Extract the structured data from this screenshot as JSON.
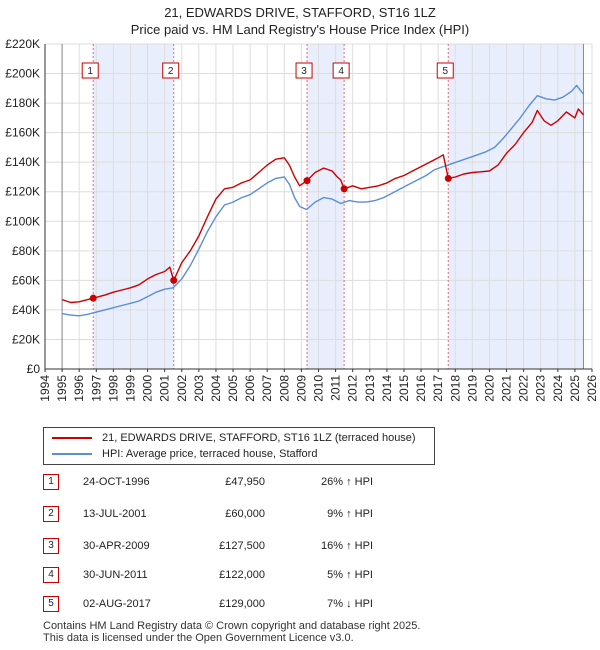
{
  "chart_data": {
    "type": "line",
    "title": "21, EDWARDS DRIVE, STAFFORD, ST16 1LZ",
    "subtitle": "Price paid vs. HM Land Registry's House Price Index (HPI)",
    "xlim": [
      1994,
      2026
    ],
    "ylim": [
      0,
      220000
    ],
    "x_ticks": [
      "1994",
      "1995",
      "1996",
      "1997",
      "1998",
      "1999",
      "2000",
      "2001",
      "2002",
      "2003",
      "2004",
      "2005",
      "2006",
      "2007",
      "2008",
      "2009",
      "2010",
      "2011",
      "2012",
      "2013",
      "2014",
      "2015",
      "2016",
      "2017",
      "2018",
      "2019",
      "2020",
      "2021",
      "2022",
      "2023",
      "2024",
      "2025",
      "2026"
    ],
    "y_ticks": [
      {
        "value": 0,
        "label": "£0"
      },
      {
        "value": 20000,
        "label": "£20K"
      },
      {
        "value": 40000,
        "label": "£40K"
      },
      {
        "value": 60000,
        "label": "£60K"
      },
      {
        "value": 80000,
        "label": "£80K"
      },
      {
        "value": 100000,
        "label": "£100K"
      },
      {
        "value": 120000,
        "label": "£120K"
      },
      {
        "value": 140000,
        "label": "£140K"
      },
      {
        "value": 160000,
        "label": "£160K"
      },
      {
        "value": 180000,
        "label": "£180K"
      },
      {
        "value": 200000,
        "label": "£200K"
      },
      {
        "value": 220000,
        "label": "£220K"
      }
    ],
    "data_start": 1995.0,
    "data_end": 2025.5,
    "series": [
      {
        "name": "21, EDWARDS DRIVE, STAFFORD, ST16 1LZ (terraced house)",
        "color": "#cc0000",
        "points": [
          [
            1995.0,
            47000
          ],
          [
            1995.5,
            45000
          ],
          [
            1996.0,
            45500
          ],
          [
            1996.5,
            47000
          ],
          [
            1996.82,
            47950
          ],
          [
            1997.5,
            50000
          ],
          [
            1998.0,
            52000
          ],
          [
            1998.5,
            53500
          ],
          [
            1999.0,
            55000
          ],
          [
            1999.5,
            57000
          ],
          [
            2000.0,
            61000
          ],
          [
            2000.5,
            64000
          ],
          [
            2001.0,
            66000
          ],
          [
            2001.3,
            69000
          ],
          [
            2001.53,
            60000
          ],
          [
            2002.0,
            72000
          ],
          [
            2002.5,
            80000
          ],
          [
            2003.0,
            90000
          ],
          [
            2003.5,
            103000
          ],
          [
            2004.0,
            115000
          ],
          [
            2004.5,
            122000
          ],
          [
            2005.0,
            123000
          ],
          [
            2005.5,
            126000
          ],
          [
            2006.0,
            128000
          ],
          [
            2006.5,
            133000
          ],
          [
            2007.0,
            138000
          ],
          [
            2007.5,
            142000
          ],
          [
            2008.0,
            143000
          ],
          [
            2008.3,
            138000
          ],
          [
            2008.6,
            130000
          ],
          [
            2008.9,
            124000
          ],
          [
            2009.33,
            127500
          ],
          [
            2009.8,
            133000
          ],
          [
            2010.3,
            136000
          ],
          [
            2010.8,
            134000
          ],
          [
            2011.1,
            130000
          ],
          [
            2011.3,
            128000
          ],
          [
            2011.5,
            122000
          ],
          [
            2012.0,
            124000
          ],
          [
            2012.5,
            122000
          ],
          [
            2013.0,
            123000
          ],
          [
            2013.5,
            124000
          ],
          [
            2014.0,
            126000
          ],
          [
            2014.5,
            129000
          ],
          [
            2015.0,
            131000
          ],
          [
            2015.5,
            134000
          ],
          [
            2016.0,
            137000
          ],
          [
            2016.5,
            140000
          ],
          [
            2017.0,
            143000
          ],
          [
            2017.3,
            145000
          ],
          [
            2017.5,
            134000
          ],
          [
            2017.59,
            129000
          ],
          [
            2018.0,
            130000
          ],
          [
            2018.5,
            132000
          ],
          [
            2019.0,
            133000
          ],
          [
            2019.5,
            133500
          ],
          [
            2020.0,
            134000
          ],
          [
            2020.5,
            138000
          ],
          [
            2021.0,
            146000
          ],
          [
            2021.5,
            152000
          ],
          [
            2022.0,
            160000
          ],
          [
            2022.5,
            167000
          ],
          [
            2022.8,
            175000
          ],
          [
            2023.2,
            168000
          ],
          [
            2023.6,
            165000
          ],
          [
            2024.0,
            168000
          ],
          [
            2024.5,
            174000
          ],
          [
            2025.0,
            170000
          ],
          [
            2025.2,
            176000
          ],
          [
            2025.5,
            172000
          ]
        ]
      },
      {
        "name": "HPI: Average price, terraced house, Stafford",
        "color": "#5b8ed6",
        "points": [
          [
            1995.0,
            37500
          ],
          [
            1995.5,
            36500
          ],
          [
            1996.0,
            36000
          ],
          [
            1996.5,
            37000
          ],
          [
            1997.0,
            38500
          ],
          [
            1997.5,
            40000
          ],
          [
            1998.0,
            41500
          ],
          [
            1998.5,
            43000
          ],
          [
            1999.0,
            44500
          ],
          [
            1999.5,
            46000
          ],
          [
            2000.0,
            49000
          ],
          [
            2000.5,
            52000
          ],
          [
            2001.0,
            54000
          ],
          [
            2001.5,
            55000
          ],
          [
            2002.0,
            61000
          ],
          [
            2002.5,
            70000
          ],
          [
            2003.0,
            81000
          ],
          [
            2003.5,
            93000
          ],
          [
            2004.0,
            103000
          ],
          [
            2004.5,
            111000
          ],
          [
            2005.0,
            113000
          ],
          [
            2005.5,
            116000
          ],
          [
            2006.0,
            118000
          ],
          [
            2006.5,
            122000
          ],
          [
            2007.0,
            126000
          ],
          [
            2007.5,
            129000
          ],
          [
            2008.0,
            130000
          ],
          [
            2008.3,
            125000
          ],
          [
            2008.6,
            116000
          ],
          [
            2008.9,
            110000
          ],
          [
            2009.3,
            108000
          ],
          [
            2009.8,
            113000
          ],
          [
            2010.3,
            116000
          ],
          [
            2010.8,
            115000
          ],
          [
            2011.3,
            112000
          ],
          [
            2011.8,
            114000
          ],
          [
            2012.3,
            113000
          ],
          [
            2012.8,
            113000
          ],
          [
            2013.3,
            114000
          ],
          [
            2013.8,
            116000
          ],
          [
            2014.3,
            119000
          ],
          [
            2014.8,
            122000
          ],
          [
            2015.3,
            125000
          ],
          [
            2015.8,
            128000
          ],
          [
            2016.3,
            131000
          ],
          [
            2016.8,
            135000
          ],
          [
            2017.3,
            137000
          ],
          [
            2017.8,
            139000
          ],
          [
            2018.3,
            141000
          ],
          [
            2018.8,
            143000
          ],
          [
            2019.3,
            145000
          ],
          [
            2019.8,
            147000
          ],
          [
            2020.3,
            150000
          ],
          [
            2020.8,
            156000
          ],
          [
            2021.3,
            163000
          ],
          [
            2021.8,
            170000
          ],
          [
            2022.3,
            178000
          ],
          [
            2022.8,
            185000
          ],
          [
            2023.3,
            183000
          ],
          [
            2023.8,
            182000
          ],
          [
            2024.3,
            184000
          ],
          [
            2024.8,
            188000
          ],
          [
            2025.1,
            192000
          ],
          [
            2025.5,
            186000
          ]
        ]
      }
    ],
    "sales": [
      {
        "label": "1",
        "x": 1996.82,
        "y": 47950
      },
      {
        "label": "2",
        "x": 2001.53,
        "y": 60000
      },
      {
        "label": "3",
        "x": 2009.33,
        "y": 127500
      },
      {
        "label": "4",
        "x": 2011.5,
        "y": 122000
      },
      {
        "label": "5",
        "x": 2017.59,
        "y": 129000
      }
    ]
  },
  "legend": {
    "property": "21, EDWARDS DRIVE, STAFFORD, ST16 1LZ (terraced house)",
    "hpi": "HPI: Average price, terraced house, Stafford",
    "property_color": "#cc0000",
    "hpi_color": "#5b8ed6"
  },
  "sales_table": [
    {
      "num": "1",
      "date": "24-OCT-1996",
      "price": "£47,950",
      "hpi": "26% ↑ HPI"
    },
    {
      "num": "2",
      "date": "13-JUL-2001",
      "price": "£60,000",
      "hpi": "9% ↑ HPI"
    },
    {
      "num": "3",
      "date": "30-APR-2009",
      "price": "£127,500",
      "hpi": "16% ↑ HPI"
    },
    {
      "num": "4",
      "date": "30-JUN-2011",
      "price": "£122,000",
      "hpi": "5% ↑ HPI"
    },
    {
      "num": "5",
      "date": "02-AUG-2017",
      "price": "£129,000",
      "hpi": "7% ↓ HPI"
    }
  ],
  "footer": {
    "line1": "Contains HM Land Registry data © Crown copyright and database right 2025.",
    "line2": "This data is licensed under the Open Government Licence v3.0."
  },
  "colors": {
    "band": "#e8eefb",
    "grid": "#dddddd",
    "sale_line": "#e07070"
  }
}
